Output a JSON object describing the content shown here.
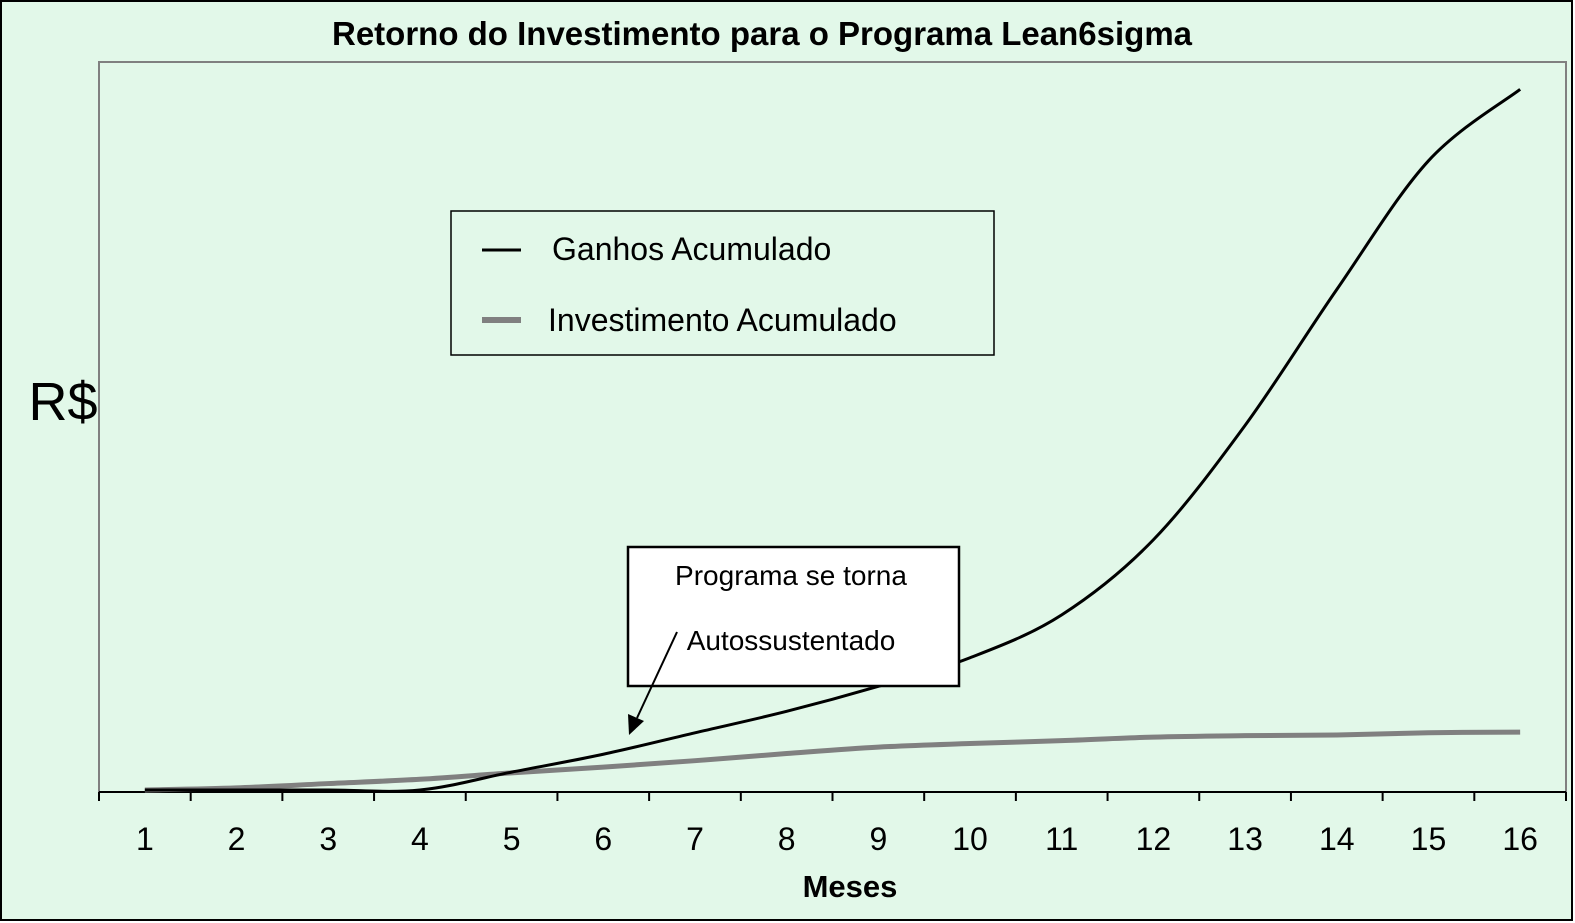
{
  "chart_data": {
    "type": "line",
    "title": "Retorno do Investimento para o Programa Lean6sigma",
    "xlabel": "Meses",
    "ylabel": "R$",
    "x": [
      1,
      2,
      3,
      4,
      5,
      6,
      7,
      8,
      9,
      10,
      11,
      12,
      13,
      14,
      15,
      16
    ],
    "ylim": [
      0,
      100
    ],
    "grid": false,
    "legend_position": "upper-center",
    "series": [
      {
        "name": "Ganhos Acumulado",
        "color": "#000000",
        "values": [
          0,
          0,
          0,
          0,
          2.5,
          5,
          8,
          11,
          14.5,
          18.5,
          24.5,
          35,
          51,
          70,
          88,
          98
        ]
      },
      {
        "name": "Investimento Acumulado",
        "color": "#808080",
        "values": [
          0,
          0.3,
          0.9,
          1.5,
          2.4,
          3.2,
          4.1,
          5.1,
          6,
          6.5,
          6.9,
          7.4,
          7.6,
          7.7,
          8,
          8.1
        ]
      }
    ],
    "annotation": {
      "lines": [
        "Programa se torna",
        "Autossustentado"
      ],
      "target_x": 6.3
    }
  },
  "colors": {
    "background": "#e2f8e9",
    "plot_border": "#808080"
  }
}
